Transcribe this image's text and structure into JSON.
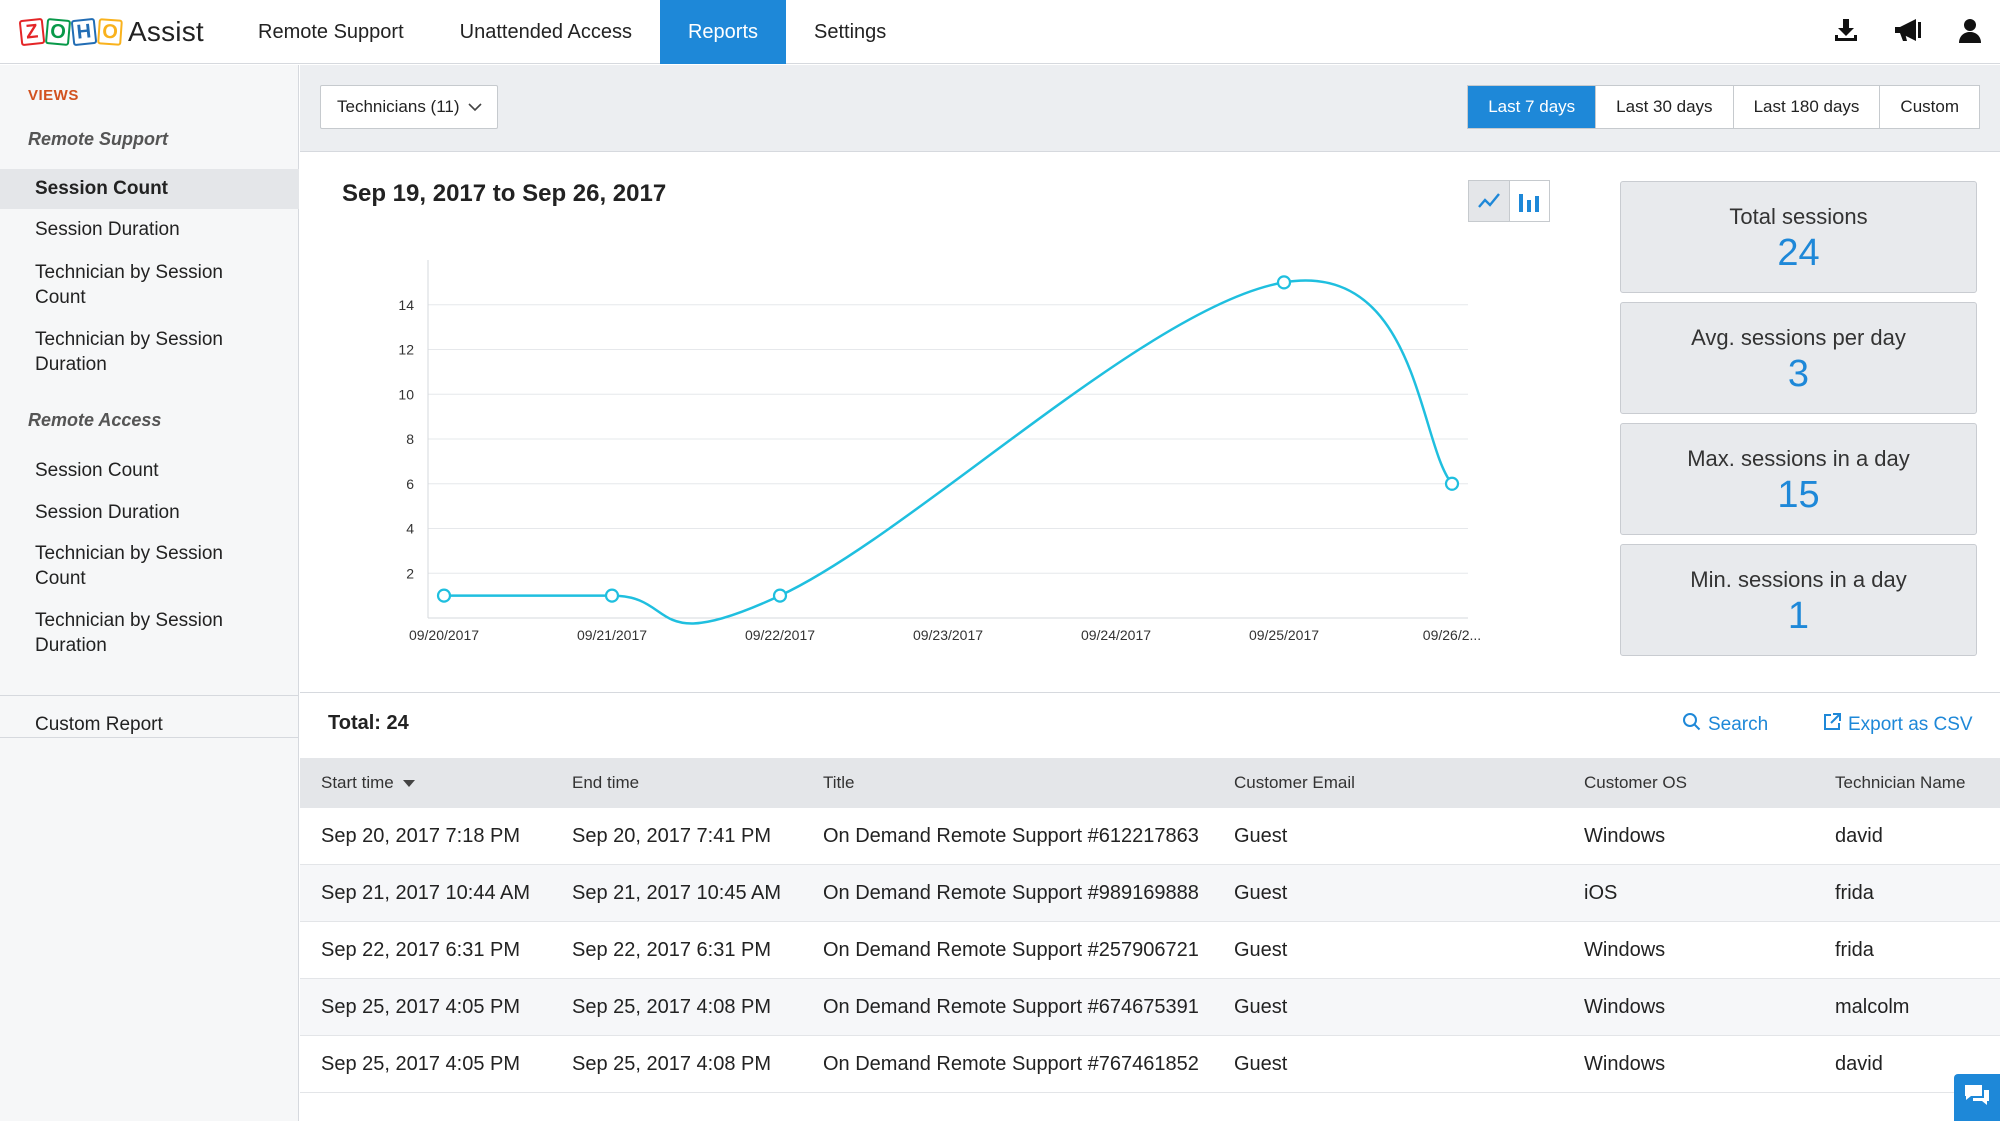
{
  "app": {
    "logo_letters": [
      "Z",
      "O",
      "H",
      "O"
    ],
    "logo_text": "Assist"
  },
  "nav": {
    "items": [
      {
        "label": "Remote Support",
        "active": false
      },
      {
        "label": "Unattended Access",
        "active": false
      },
      {
        "label": "Reports",
        "active": true
      },
      {
        "label": "Settings",
        "active": false
      }
    ],
    "icons": [
      "download-icon",
      "announcement-icon",
      "user-icon"
    ]
  },
  "sidebar": {
    "views_label": "VIEWS",
    "sections": [
      {
        "title": "Remote Support",
        "items": [
          {
            "label": "Session Count",
            "active": true
          },
          {
            "label": "Session Duration",
            "active": false
          },
          {
            "label": "Technician by Session Count",
            "active": false
          },
          {
            "label": "Technician by Session Duration",
            "active": false
          }
        ]
      },
      {
        "title": "Remote Access",
        "items": [
          {
            "label": "Session Count",
            "active": false
          },
          {
            "label": "Session Duration",
            "active": false
          },
          {
            "label": "Technician by Session Count",
            "active": false
          },
          {
            "label": "Technician by Session Duration",
            "active": false
          }
        ]
      }
    ],
    "custom_report": "Custom Report"
  },
  "filters": {
    "technicians": "Technicians (11)",
    "ranges": [
      {
        "label": "Last 7 days",
        "active": true
      },
      {
        "label": "Last 30 days",
        "active": false
      },
      {
        "label": "Last 180 days",
        "active": false
      },
      {
        "label": "Custom",
        "active": false
      }
    ]
  },
  "report": {
    "date_range_title": "Sep 19, 2017 to Sep 26, 2017"
  },
  "stats": [
    {
      "label": "Total sessions",
      "value": "24"
    },
    {
      "label": "Avg. sessions per day",
      "value": "3"
    },
    {
      "label": "Max. sessions in a day",
      "value": "15"
    },
    {
      "label": "Min. sessions in a day",
      "value": "1"
    }
  ],
  "chart_data": {
    "type": "line",
    "title": "",
    "xlabel": "",
    "ylabel": "",
    "categories": [
      "09/20/2017",
      "09/21/2017",
      "09/22/2017",
      "09/23/2017",
      "09/24/2017",
      "09/25/2017",
      "09/26/2..."
    ],
    "points": [
      {
        "x": "09/20/2017",
        "y": 1
      },
      {
        "x": "09/21/2017",
        "y": 1
      },
      {
        "x": "09/22/2017",
        "y": 1
      },
      {
        "x": "09/25/2017",
        "y": 15
      },
      {
        "x": "09/26/2017",
        "y": 6
      }
    ],
    "yticks": [
      2,
      4,
      6,
      8,
      10,
      12,
      14
    ],
    "ylim": [
      0,
      16
    ],
    "grid": true,
    "color": "#1fbfdf"
  },
  "table": {
    "total_label": "Total: 24",
    "search_label": "Search",
    "export_label": "Export as CSV",
    "columns": [
      "Start time",
      "End time",
      "Title",
      "Customer Email",
      "Customer OS",
      "Technician Name"
    ],
    "rows": [
      [
        "Sep 20, 2017 7:18 PM",
        "Sep 20, 2017 7:41 PM",
        "On Demand Remote Support #612217863",
        "Guest",
        "Windows",
        "david"
      ],
      [
        "Sep 21, 2017 10:44 AM",
        "Sep 21, 2017 10:45 AM",
        "On Demand Remote Support #989169888",
        "Guest",
        "iOS",
        "frida"
      ],
      [
        "Sep 22, 2017 6:31 PM",
        "Sep 22, 2017 6:31 PM",
        "On Demand Remote Support #257906721",
        "Guest",
        "Windows",
        "frida"
      ],
      [
        "Sep 25, 2017 4:05 PM",
        "Sep 25, 2017 4:08 PM",
        "On Demand Remote Support #674675391",
        "Guest",
        "Windows",
        "malcolm"
      ],
      [
        "Sep 25, 2017 4:05 PM",
        "Sep 25, 2017 4:08 PM",
        "On Demand Remote Support #767461852",
        "Guest",
        "Windows",
        "david"
      ]
    ]
  },
  "colors": {
    "accent": "#1e88d8",
    "views_label": "#d2521f",
    "line": "#1fbfdf"
  }
}
